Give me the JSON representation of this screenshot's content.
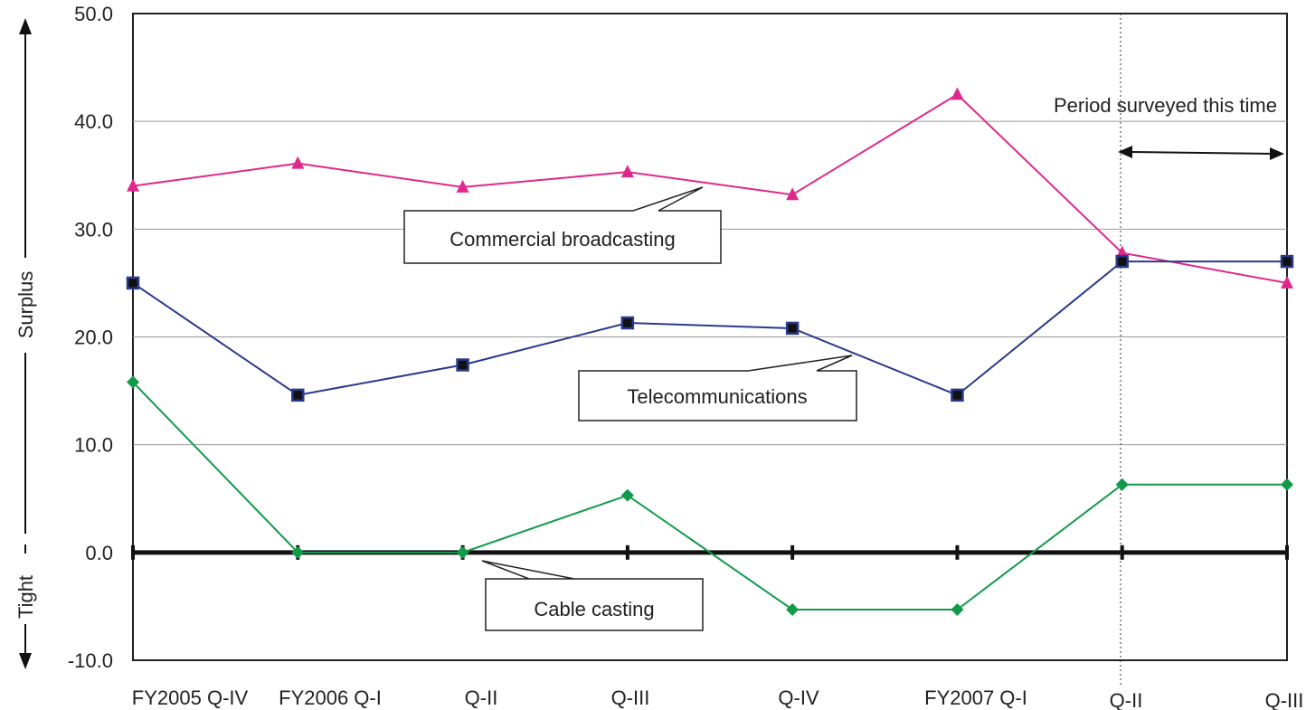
{
  "chart_data": {
    "type": "line",
    "categories": [
      "FY2005 Q-IV",
      "FY2006 Q-I",
      "Q-II",
      "Q-III",
      "Q-IV",
      "FY2007 Q-I",
      "Q-II",
      "Q-III"
    ],
    "series": [
      {
        "name": "Commercial broadcasting",
        "values": [
          34.0,
          36.1,
          33.9,
          35.3,
          33.2,
          42.5,
          27.8,
          25.0
        ],
        "color": "#e0288c",
        "marker": "triangle"
      },
      {
        "name": "Telecommunications",
        "values": [
          25.0,
          14.6,
          17.4,
          21.3,
          20.8,
          14.6,
          27.0,
          27.0
        ],
        "color": "#2a3a8c",
        "marker": "square"
      },
      {
        "name": "Cable casting",
        "values": [
          15.8,
          0.0,
          0.0,
          5.3,
          -5.3,
          -5.3,
          6.3,
          6.3
        ],
        "color": "#119a4a",
        "marker": "diamond"
      }
    ],
    "ylim": [
      -10,
      50
    ],
    "yticks": [
      "50.0",
      "40.0",
      "30.0",
      "20.0",
      "10.0",
      "0.0",
      "-10.0"
    ],
    "grid": true,
    "ylabel_surplus": "Surplus",
    "ylabel_tight": "Tight",
    "period_label": "Period surveyed this time"
  }
}
